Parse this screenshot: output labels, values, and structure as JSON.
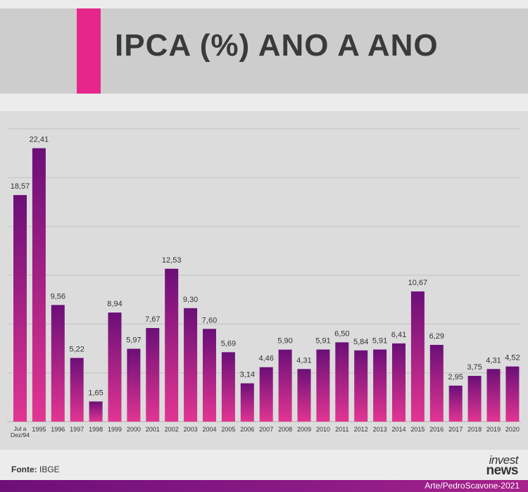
{
  "header": {
    "title": "IPCA (%) ANO A ANO"
  },
  "colors": {
    "accent": "#e6268a",
    "bar_top": "#6b0f78",
    "bar_bottom": "#e23592",
    "footer": "#6e0f78"
  },
  "source": {
    "label": "Fonte:",
    "value": "IBGE"
  },
  "logo": {
    "line1": "invest",
    "line2": "news"
  },
  "credit": "Arte/PedroScavone-2021",
  "chart_data": {
    "type": "bar",
    "title": "IPCA (%) ANO A ANO",
    "xlabel": "",
    "ylabel": "",
    "ylim": [
      0,
      24
    ],
    "grid": true,
    "categories": [
      "Jul a Dez/94",
      "1995",
      "1996",
      "1997",
      "1998",
      "1999",
      "2000",
      "2001",
      "2002",
      "2003",
      "2004",
      "2005",
      "2006",
      "2007",
      "2008",
      "2009",
      "2010",
      "2011",
      "2012",
      "2013",
      "2014",
      "2015",
      "2016",
      "2017",
      "2018",
      "2019",
      "2020"
    ],
    "values": [
      18.57,
      22.41,
      9.56,
      5.22,
      1.65,
      8.94,
      5.97,
      7.67,
      12.53,
      9.3,
      7.6,
      5.69,
      3.14,
      4.46,
      5.9,
      4.31,
      5.91,
      6.5,
      5.84,
      5.91,
      6.41,
      10.67,
      6.29,
      2.95,
      3.75,
      4.31,
      4.52
    ],
    "value_labels": [
      "18,57",
      "22,41",
      "9,56",
      "5,22",
      "1,65",
      "8,94",
      "5,97",
      "7,67",
      "12,53",
      "9,30",
      "7,60",
      "5,69",
      "3,14",
      "4,46",
      "5,90",
      "4,31",
      "5,91",
      "6,50",
      "5,84",
      "5,91",
      "6,41",
      "10,67",
      "6,29",
      "2,95",
      "3,75",
      "4,31",
      "4,52"
    ]
  }
}
